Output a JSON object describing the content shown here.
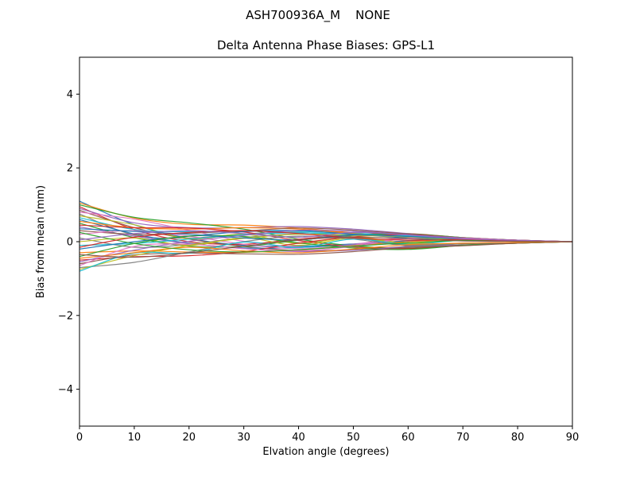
{
  "chart_data": {
    "type": "line",
    "suptitle": "ASH700936A_M    NONE",
    "title": "Delta Antenna Phase Biases: GPS-L1",
    "xlabel": "Elvation angle (degrees)",
    "ylabel": "Bias from mean (mm)",
    "xlim": [
      0,
      90
    ],
    "ylim": [
      -5,
      5
    ],
    "grid": false,
    "legend_position": "none",
    "x_ticks": [
      0,
      10,
      20,
      30,
      40,
      50,
      60,
      70,
      80,
      90
    ],
    "x_tick_labels": [
      "0",
      "10",
      "20",
      "30",
      "40",
      "50",
      "60",
      "70",
      "80",
      "90"
    ],
    "y_ticks": [
      -4,
      -2,
      0,
      2,
      4
    ],
    "y_tick_labels": [
      "−4",
      "−2",
      "0",
      "2",
      "4"
    ],
    "x": [
      0,
      10,
      20,
      30,
      40,
      50,
      60,
      70,
      80,
      90
    ],
    "series": [
      {
        "color": "#1f77b4",
        "values": [
          1.1,
          0.46,
          0.09,
          -0.1,
          -0.12,
          -0.06,
          0.02,
          0.06,
          0.02,
          0
        ]
      },
      {
        "color": "#ff7f0e",
        "values": [
          1.05,
          0.64,
          0.47,
          0.45,
          0.37,
          0.24,
          0.12,
          0.06,
          0.02,
          0
        ]
      },
      {
        "color": "#2ca02c",
        "values": [
          1.0,
          0.66,
          0.51,
          0.34,
          0.07,
          -0.11,
          -0.18,
          -0.09,
          -0.04,
          0
        ]
      },
      {
        "color": "#d62728",
        "values": [
          0.95,
          0.33,
          0.0,
          -0.07,
          0.07,
          0.19,
          0.22,
          0.11,
          0.04,
          0
        ]
      },
      {
        "color": "#9467bd",
        "values": [
          0.9,
          0.51,
          0.38,
          0.38,
          0.41,
          0.34,
          0.22,
          0.11,
          0.04,
          0
        ]
      },
      {
        "color": "#8c564b",
        "values": [
          0.85,
          0.38,
          0.07,
          -0.13,
          -0.24,
          -0.22,
          -0.13,
          -0.09,
          -0.03,
          0
        ]
      },
      {
        "color": "#e377c2",
        "values": [
          0.8,
          0.61,
          0.31,
          0.01,
          -0.14,
          -0.07,
          0.12,
          0.11,
          0.03,
          0
        ]
      },
      {
        "color": "#7f7f7f",
        "values": [
          0.75,
          0.18,
          0.1,
          0.21,
          0.25,
          0.13,
          -0.08,
          -0.04,
          -0.02,
          0
        ]
      },
      {
        "color": "#bcbd22",
        "values": [
          0.7,
          0.46,
          0.08,
          0.2,
          -0.05,
          0.13,
          -0.04,
          0.06,
          0.02,
          0
        ]
      },
      {
        "color": "#17becf",
        "values": [
          0.65,
          0.33,
          0.27,
          0.29,
          0.28,
          0.23,
          0.16,
          0.06,
          0.02,
          0
        ]
      },
      {
        "color": "#1f77b4",
        "values": [
          0.6,
          0.21,
          -0.04,
          -0.17,
          -0.16,
          -0.08,
          0.01,
          0.06,
          0.02,
          0
        ]
      },
      {
        "color": "#ff7f0e",
        "values": [
          0.55,
          0.38,
          0.34,
          0.38,
          0.34,
          0.22,
          0.11,
          0.06,
          0.02,
          0
        ]
      },
      {
        "color": "#2ca02c",
        "values": [
          0.5,
          0.11,
          -0.12,
          -0.13,
          0.04,
          0.17,
          0.21,
          0.11,
          0.04,
          0
        ]
      },
      {
        "color": "#d62728",
        "values": [
          0.45,
          0.38,
          0.37,
          0.26,
          0.03,
          -0.14,
          -0.19,
          -0.1,
          -0.04,
          0
        ]
      },
      {
        "color": "#9467bd",
        "values": [
          0.4,
          0.15,
          -0.05,
          -0.19,
          -0.27,
          -0.23,
          -0.14,
          -0.1,
          -0.03,
          0
        ]
      },
      {
        "color": "#8c564b",
        "values": [
          0.3,
          0.2,
          0.23,
          0.29,
          0.37,
          0.31,
          0.21,
          0.1,
          0.04,
          0
        ]
      },
      {
        "color": "#e377c2",
        "values": [
          0.2,
          0.3,
          0.15,
          -0.07,
          -0.19,
          -0.09,
          0.1,
          0.1,
          0.03,
          0
        ]
      },
      {
        "color": "#7f7f7f",
        "values": [
          0.1,
          -0.15,
          -0.07,
          0.11,
          0.21,
          0.11,
          -0.1,
          -0.05,
          -0.02,
          0
        ]
      },
      {
        "color": "#bcbd22",
        "values": [
          0.0,
          0.1,
          -0.1,
          0.1,
          -0.1,
          0.1,
          -0.05,
          0.05,
          0.02,
          0
        ]
      },
      {
        "color": "#17becf",
        "values": [
          -0.1,
          -0.05,
          0.07,
          0.19,
          0.24,
          0.2,
          0.15,
          0.05,
          0.02,
          0
        ]
      },
      {
        "color": "#1f77b4",
        "values": [
          -0.2,
          0.0,
          0.15,
          0.27,
          0.3,
          0.2,
          0.1,
          0.05,
          0.02,
          0
        ]
      },
      {
        "color": "#ff7f0e",
        "values": [
          -0.3,
          -0.25,
          -0.28,
          -0.29,
          -0.22,
          -0.11,
          0.0,
          0.05,
          0.02,
          0
        ]
      },
      {
        "color": "#2ca02c",
        "values": [
          -0.4,
          -0.05,
          0.15,
          0.14,
          -0.03,
          -0.17,
          -0.21,
          -0.1,
          -0.04,
          0
        ]
      },
      {
        "color": "#d62728",
        "values": [
          -0.5,
          -0.41,
          -0.38,
          -0.27,
          -0.04,
          0.13,
          0.19,
          0.1,
          0.04,
          0
        ]
      },
      {
        "color": "#9467bd",
        "values": [
          -0.55,
          -0.23,
          0.01,
          0.17,
          0.31,
          0.28,
          0.19,
          0.1,
          0.04,
          0
        ]
      },
      {
        "color": "#8c564b",
        "values": [
          -0.6,
          -0.36,
          -0.31,
          -0.33,
          -0.34,
          -0.27,
          -0.16,
          -0.11,
          -0.04,
          0
        ]
      },
      {
        "color": "#e377c2",
        "values": [
          -0.65,
          -0.13,
          -0.07,
          -0.19,
          -0.25,
          -0.13,
          0.09,
          0.09,
          0.03,
          0
        ]
      },
      {
        "color": "#7f7f7f",
        "values": [
          -0.7,
          -0.56,
          -0.28,
          0.0,
          0.15,
          0.07,
          -0.11,
          -0.06,
          -0.02,
          0
        ]
      },
      {
        "color": "#bcbd22",
        "values": [
          -0.75,
          -0.38,
          -0.1,
          0.09,
          0.2,
          0.17,
          0.13,
          0.04,
          0.02,
          0
        ]
      },
      {
        "color": "#17becf",
        "values": [
          -0.8,
          -0.31,
          -0.31,
          -0.01,
          -0.16,
          0.07,
          -0.07,
          0.04,
          0.02,
          0
        ]
      },
      {
        "color": "#1f77b4",
        "values": [
          0.35,
          0.28,
          0.2,
          0.1,
          0.05,
          0.18,
          0.14,
          0.07,
          0.02,
          0
        ]
      },
      {
        "color": "#ff7f0e",
        "values": [
          -0.45,
          -0.3,
          -0.15,
          -0.25,
          -0.3,
          -0.2,
          -0.08,
          -0.04,
          -0.02,
          0
        ]
      },
      {
        "color": "#2ca02c",
        "values": [
          0.25,
          -0.05,
          -0.22,
          -0.28,
          -0.22,
          -0.12,
          -0.03,
          0.03,
          0.01,
          0
        ]
      },
      {
        "color": "#d62728",
        "values": [
          -0.15,
          0.12,
          0.25,
          0.3,
          0.22,
          0.1,
          0.04,
          0.06,
          0.02,
          0
        ]
      },
      {
        "color": "#9467bd",
        "values": [
          0.05,
          0.22,
          0.3,
          0.22,
          0.12,
          0.25,
          0.18,
          0.08,
          0.03,
          0
        ]
      },
      {
        "color": "#8c564b",
        "values": [
          -0.35,
          -0.42,
          -0.3,
          -0.12,
          0.05,
          0.12,
          0.08,
          0.02,
          0.01,
          0
        ]
      }
    ]
  }
}
